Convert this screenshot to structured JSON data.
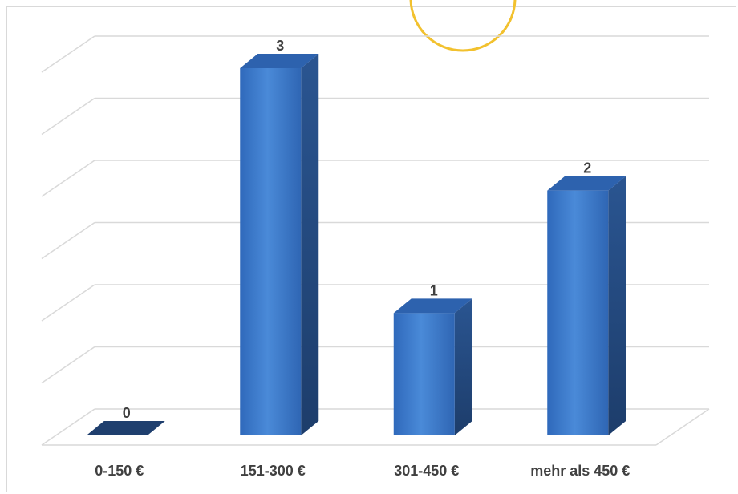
{
  "chart_data": {
    "type": "bar",
    "style": "3d-column",
    "categories": [
      "0-150 €",
      "151-300 €",
      "301-450 €",
      "mehr als 450 €"
    ],
    "values": [
      0,
      3,
      1,
      2
    ],
    "data_labels": [
      "0",
      "3",
      "1",
      "2"
    ],
    "title": "",
    "xlabel": "",
    "ylabel": "",
    "ylim": [
      0,
      3
    ],
    "grid": true,
    "legend": "none",
    "colors": {
      "bar_front": "#3a78cc",
      "bar_front_light": "#4a8ad8",
      "bar_side": "#24487a",
      "bar_top": "#2d62ae",
      "grid": "#d9d9d9",
      "accent_circle": "#f2c12e"
    }
  }
}
